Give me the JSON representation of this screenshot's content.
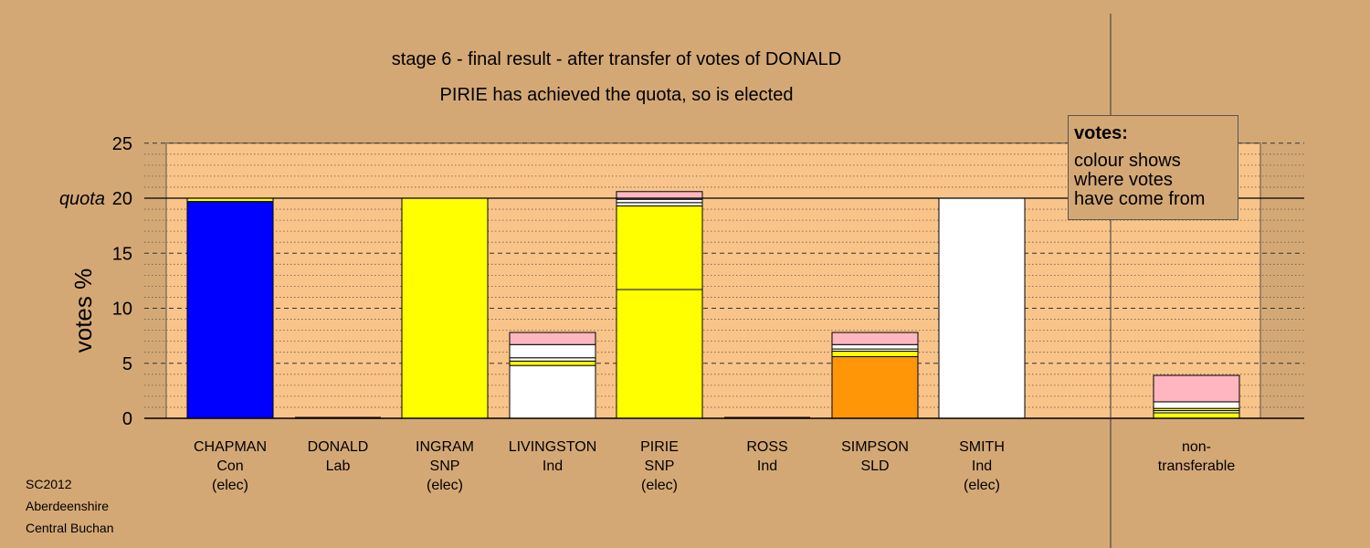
{
  "titles": {
    "line1": "stage 6 - final result - after transfer of votes of DONALD",
    "line2": "PIRIE has achieved the quota, so is elected"
  },
  "legend": {
    "title": "votes:",
    "body": "colour shows\nwhere votes\nhave come from"
  },
  "source": [
    "SC2012",
    "Aberdeenshire",
    "Central Buchan"
  ],
  "colors": {
    "background": "#d4a875",
    "plot_area": "#f9c48a",
    "Con": "#0000ff",
    "SNP": "#ffff00",
    "Ind": "#ffffff",
    "SLD": "#ff9608",
    "Lab": "#ffb6c1"
  },
  "chart_data": {
    "type": "bar",
    "stacked": true,
    "ylabel": "votes %",
    "ylim": [
      0,
      25
    ],
    "yticks": [
      0,
      5,
      10,
      15,
      20,
      25
    ],
    "quota": 20,
    "quota_label": "quota",
    "grid": true,
    "legend_position": "top-right",
    "candidates": [
      {
        "name": "CHAPMAN",
        "party": "Con",
        "status": "(elec)",
        "segments": [
          {
            "from": "Con",
            "value": 19.7
          },
          {
            "from": "SNP",
            "value": 0.3
          }
        ]
      },
      {
        "name": "DONALD",
        "party": "Lab",
        "status": "",
        "segments": []
      },
      {
        "name": "INGRAM",
        "party": "SNP",
        "status": "(elec)",
        "segments": [
          {
            "from": "SNP",
            "value": 20.0
          }
        ]
      },
      {
        "name": "LIVINGSTON",
        "party": "Ind",
        "status": "",
        "segments": [
          {
            "from": "Ind",
            "value": 4.8
          },
          {
            "from": "SNP",
            "value": 0.4
          },
          {
            "from": "Ind",
            "value": 0.3
          },
          {
            "from": "Ind",
            "value": 1.2
          },
          {
            "from": "Lab",
            "value": 1.1
          }
        ]
      },
      {
        "name": "PIRIE",
        "party": "SNP",
        "status": "(elec)",
        "segments": [
          {
            "from": "SNP",
            "value": 11.7
          },
          {
            "from": "SNP",
            "value": 7.6
          },
          {
            "from": "Ind",
            "value": 0.3
          },
          {
            "from": "Ind",
            "value": 0.3
          },
          {
            "from": "Lab",
            "value": 0.7
          }
        ]
      },
      {
        "name": "ROSS",
        "party": "Ind",
        "status": "",
        "segments": []
      },
      {
        "name": "SIMPSON",
        "party": "SLD",
        "status": "",
        "segments": [
          {
            "from": "SLD",
            "value": 5.6
          },
          {
            "from": "SNP",
            "value": 0.5
          },
          {
            "from": "Ind",
            "value": 0.2
          },
          {
            "from": "Ind",
            "value": 0.4
          },
          {
            "from": "Lab",
            "value": 1.1
          }
        ]
      },
      {
        "name": "SMITH",
        "party": "Ind",
        "status": "(elec)",
        "segments": [
          {
            "from": "Ind",
            "value": 20.0
          }
        ]
      }
    ],
    "non_transferable": {
      "label_line1": "non-",
      "label_line2": "transferable",
      "segments": [
        {
          "from": "SNP",
          "value": 0.5
        },
        {
          "from": "Ind",
          "value": 0.2
        },
        {
          "from": "SNP",
          "value": 0.2
        },
        {
          "from": "Ind",
          "value": 0.6
        },
        {
          "from": "Lab",
          "value": 2.4
        }
      ]
    }
  }
}
